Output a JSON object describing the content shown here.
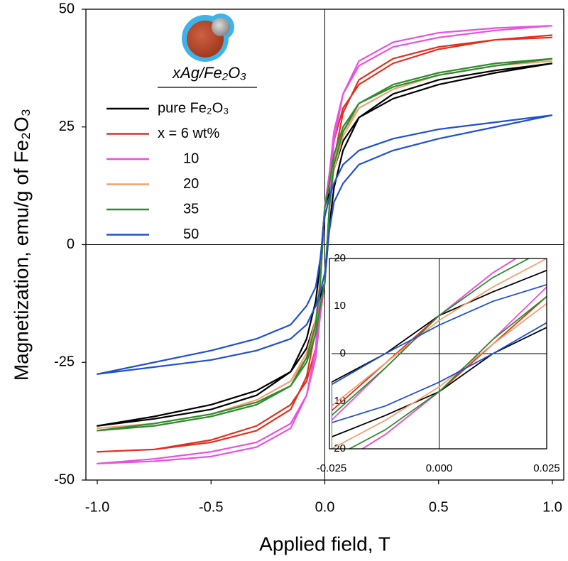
{
  "chart_data": [
    {
      "type": "line",
      "x_label": "Applied field, T",
      "y_label": "Magnetization, emu/g of Fe₂O₃",
      "legend_title": "xAg/Fe₂O₃",
      "legend": "upper left",
      "zero_lines": true,
      "xlim": [
        -1.05,
        1.05
      ],
      "ylim": [
        -50,
        50
      ],
      "xticks": [
        {
          "value": -1,
          "label": "-1.0"
        },
        -0.5,
        {
          "value": 0,
          "label": "0.0"
        },
        0.5,
        {
          "value": 1,
          "label": "1.0"
        }
      ],
      "yticks": [
        -50,
        -25,
        0,
        25,
        50
      ],
      "x": [
        1,
        0.75,
        0.5,
        0.3,
        0.15,
        0.08,
        0.04,
        0.02,
        0,
        -0.02,
        -0.04,
        -0.08,
        -0.15,
        -0.3,
        -0.5,
        -0.75,
        -1,
        -0.75,
        -0.5,
        -0.3,
        -0.15,
        -0.08,
        -0.04,
        -0.02,
        0,
        0.02,
        0.04,
        0.08,
        0.15,
        0.3,
        0.5,
        0.75,
        1
      ],
      "series": [
        {
          "name": "pure Fe₂O₃",
          "color": "#000000",
          "values": [
            38.5,
            36.5,
            34,
            31,
            27,
            22,
            16,
            11,
            8,
            -4,
            -12,
            -20,
            -27,
            -32,
            -35,
            -37,
            -38.5,
            -36.5,
            -34,
            -31,
            -27,
            -22,
            -16,
            -11,
            -8,
            4,
            12,
            20,
            27,
            32,
            35,
            37,
            38.5
          ]
        },
        {
          "name": "x = 6 wt%",
          "color": "#e0301e",
          "values": [
            44.5,
            43.5,
            41.5,
            38.5,
            34,
            29,
            22,
            15,
            8,
            -8,
            -18,
            -28,
            -35,
            -39.5,
            -42,
            -43.5,
            -44,
            -43.5,
            -41.5,
            -38.5,
            -34,
            -29,
            -22,
            -15,
            -8,
            8,
            18,
            28,
            35,
            39.5,
            42,
            43.5,
            44
          ]
        },
        {
          "name": "10",
          "color": "#e94fe0",
          "values": [
            46.5,
            45.5,
            44,
            42,
            38,
            32,
            24,
            15,
            8,
            -8,
            -22,
            -32,
            -39,
            -43,
            -45,
            -46,
            -46.5,
            -45.5,
            -44,
            -42,
            -38,
            -32,
            -24,
            -15,
            -8,
            8,
            22,
            32,
            39,
            43,
            45,
            46,
            46.5
          ]
        },
        {
          "name": "20",
          "color": "#f2a070",
          "values": [
            39.5,
            38,
            36,
            33,
            29,
            24,
            18,
            13,
            8,
            -7,
            -16,
            -23,
            -29,
            -33,
            -36,
            -38,
            -39,
            -38,
            -36,
            -33,
            -29,
            -24,
            -18,
            -13,
            -8,
            7,
            16,
            23,
            29,
            33,
            36,
            38,
            39
          ]
        },
        {
          "name": "35",
          "color": "#2e8b2e",
          "values": [
            39.5,
            38,
            36,
            33.5,
            30,
            25,
            19,
            13,
            8,
            -8,
            -17,
            -24,
            -30,
            -34,
            -36.5,
            -38.5,
            -39.5,
            -38,
            -36,
            -33.5,
            -30,
            -25,
            -19,
            -13,
            -8,
            8,
            17,
            24,
            30,
            34,
            36.5,
            38.5,
            39.5
          ]
        },
        {
          "name": "50",
          "color": "#2050d0",
          "values": [
            27.5,
            26,
            24.5,
            22.5,
            20,
            17,
            13,
            10,
            6,
            -3,
            -9,
            -13,
            -17,
            -20,
            -22.5,
            -25,
            -27.5,
            -26,
            -24.5,
            -22.5,
            -20,
            -17,
            -13,
            -10,
            -6,
            3,
            9,
            13,
            17,
            20,
            22.5,
            25,
            27.5
          ]
        }
      ]
    },
    {
      "type": "line",
      "zero_lines": true,
      "xlim": [
        -0.025,
        0.025
      ],
      "ylim": [
        -20,
        20
      ],
      "xticks": [
        -0.025,
        {
          "value": 0,
          "label": "0.000"
        },
        0.025
      ],
      "yticks": [
        {
          "value": -20,
          "label": "20"
        },
        {
          "value": -10,
          "label": "10"
        },
        0,
        10,
        20
      ],
      "x": [
        0.025,
        0.0125,
        0,
        -0.0125,
        -0.025,
        -0.025,
        -0.0125,
        0,
        0.0125,
        0.025
      ],
      "series": [
        {
          "color": "#000000",
          "values": [
            17.5,
            13,
            8,
            0,
            -6,
            -17.5,
            -13,
            -8,
            0,
            5.5
          ]
        },
        {
          "color": "#e0301e",
          "values": [
            24,
            17,
            8,
            -2,
            -12,
            -24,
            -17,
            -8,
            2,
            12
          ]
        },
        {
          "color": "#e94fe0",
          "values": [
            24,
            17,
            8,
            -3,
            -14,
            -24,
            -17,
            -8,
            3,
            14
          ]
        },
        {
          "color": "#f2a070",
          "values": [
            20,
            14,
            7,
            -2,
            -11,
            -20,
            -14,
            -7,
            2,
            10.5
          ]
        },
        {
          "color": "#2e8b2e",
          "values": [
            22,
            16,
            8,
            -3,
            -13,
            -22,
            -16,
            -8,
            3,
            12
          ]
        },
        {
          "color": "#2050d0",
          "values": [
            14.5,
            11,
            6,
            0,
            -6.5,
            -14.5,
            -11,
            -6,
            0,
            6.5
          ]
        }
      ]
    }
  ]
}
